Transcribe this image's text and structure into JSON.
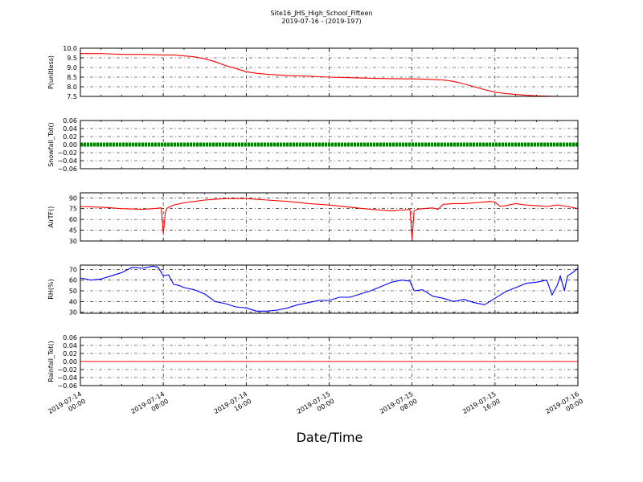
{
  "title_line1": "Site16_JHS_High_School_Fifteen",
  "title_line2": "2019-07-16 - (2019-197)",
  "xlabel": "Date/Time",
  "x_ticks": [
    {
      "line1": "2019-07-14",
      "line2": "00:00",
      "value": 0
    },
    {
      "line1": "2019-07-14",
      "line2": "08:00",
      "value": 8
    },
    {
      "line1": "2019-07-14",
      "line2": "16:00",
      "value": 16
    },
    {
      "line1": "2019-07-15",
      "line2": "00:00",
      "value": 24
    },
    {
      "line1": "2019-07-15",
      "line2": "08:00",
      "value": 32
    },
    {
      "line1": "2019-07-15",
      "line2": "16:00",
      "value": 40
    },
    {
      "line1": "2019-07-16",
      "line2": "00:00",
      "value": 48
    }
  ],
  "chart_data": [
    {
      "type": "line",
      "ylabel": "P(unitless)",
      "ylim": [
        7.5,
        10.0
      ],
      "yticks": [
        "7.5",
        "8.0",
        "8.5",
        "9.0",
        "9.5",
        "10.0"
      ],
      "color": "#ff0000",
      "marker": false,
      "series": [
        {
          "x": [
            0,
            2,
            4,
            6,
            8,
            9,
            10,
            11,
            12,
            13,
            14,
            15,
            16,
            17,
            18,
            20,
            22,
            24,
            26,
            28,
            30,
            32,
            33,
            34,
            35,
            36,
            37,
            38,
            39,
            40,
            41,
            42,
            43,
            44,
            46,
            48
          ],
          "y": [
            9.72,
            9.72,
            9.68,
            9.68,
            9.65,
            9.65,
            9.6,
            9.55,
            9.45,
            9.3,
            9.1,
            8.95,
            8.78,
            8.7,
            8.65,
            8.58,
            8.55,
            8.5,
            8.47,
            8.44,
            8.42,
            8.41,
            8.4,
            8.38,
            8.35,
            8.28,
            8.15,
            8.0,
            7.85,
            7.72,
            7.65,
            7.6,
            7.56,
            7.53,
            7.5,
            7.5
          ]
        }
      ]
    },
    {
      "type": "line",
      "ylabel": "Snowfall_Tot()",
      "ylim": [
        -0.06,
        0.06
      ],
      "yticks": [
        "−0.06",
        "−0.04",
        "−0.02",
        "0.00",
        "0.02",
        "0.04",
        "0.06"
      ],
      "color": "#008000",
      "marker": true,
      "series": [
        {
          "x": [
            0,
            48
          ],
          "y": [
            0,
            0
          ]
        }
      ]
    },
    {
      "type": "line",
      "ylabel": "AirTF()",
      "ylim": [
        30,
        97
      ],
      "yticks": [
        "30",
        "45",
        "60",
        "75",
        "90"
      ],
      "color": "#ff0000",
      "marker": false,
      "series": [
        {
          "x": [
            0,
            2,
            4,
            6,
            7,
            7.8,
            8.0,
            8.2,
            8.4,
            8.7,
            9,
            10,
            11,
            12,
            13,
            14,
            15,
            16,
            17,
            18,
            20,
            22,
            24,
            26,
            28,
            30,
            31,
            31.8,
            32.0,
            32.2,
            32.5,
            33,
            34,
            34.5,
            35,
            36,
            37,
            38,
            39,
            39.5,
            40,
            40.5,
            41,
            42,
            43,
            44,
            45,
            46,
            47,
            48
          ],
          "y": [
            78,
            77,
            75,
            74,
            75,
            76,
            40,
            70,
            76,
            78,
            80,
            83,
            85,
            87,
            88,
            89,
            89,
            89,
            88,
            87,
            85,
            82,
            80,
            77,
            74,
            72,
            73,
            74,
            33,
            72,
            74,
            75,
            76,
            74,
            81,
            82,
            82,
            83,
            84,
            85,
            84,
            78,
            79,
            82,
            80,
            79,
            78,
            80,
            78,
            75
          ]
        }
      ]
    },
    {
      "type": "line",
      "ylabel": "RH(%)",
      "ylim": [
        29,
        74
      ],
      "yticks": [
        "30",
        "40",
        "50",
        "60",
        "70"
      ],
      "color": "#0000ff",
      "marker": false,
      "series": [
        {
          "x": [
            0,
            1,
            2,
            3,
            4,
            5,
            6,
            7,
            7.5,
            8,
            8.5,
            9,
            9.5,
            10,
            11,
            12,
            13,
            14,
            15,
            16,
            17,
            18,
            19,
            20,
            21,
            22,
            23,
            24,
            25,
            26,
            27,
            28,
            29,
            30,
            31,
            31.8,
            32.2,
            33,
            34,
            35,
            36,
            37,
            38,
            39,
            40,
            41,
            42,
            43,
            44,
            45,
            45.5,
            46,
            46.3,
            46.7,
            47,
            47.5,
            48
          ],
          "y": [
            62,
            60,
            61,
            64,
            67,
            72,
            71,
            73,
            72,
            64,
            65,
            56,
            55,
            53,
            51,
            47,
            40,
            38,
            35,
            34,
            31,
            31,
            32,
            34,
            37,
            39,
            41,
            41,
            44,
            44,
            47,
            50,
            54,
            58,
            60,
            59,
            50,
            51,
            45,
            43,
            40,
            42,
            39,
            37,
            43,
            49,
            53,
            57,
            58,
            60,
            46,
            55,
            64,
            50,
            64,
            67,
            71
          ]
        }
      ]
    },
    {
      "type": "line",
      "ylabel": "Rainfall_Tot()",
      "ylim": [
        -0.06,
        0.06
      ],
      "yticks": [
        "−0.06",
        "−0.04",
        "−0.02",
        "0.00",
        "0.02",
        "0.04",
        "0.06"
      ],
      "color": "#ff0000",
      "marker": false,
      "series": [
        {
          "x": [
            0,
            48
          ],
          "y": [
            0,
            0
          ]
        }
      ]
    }
  ]
}
